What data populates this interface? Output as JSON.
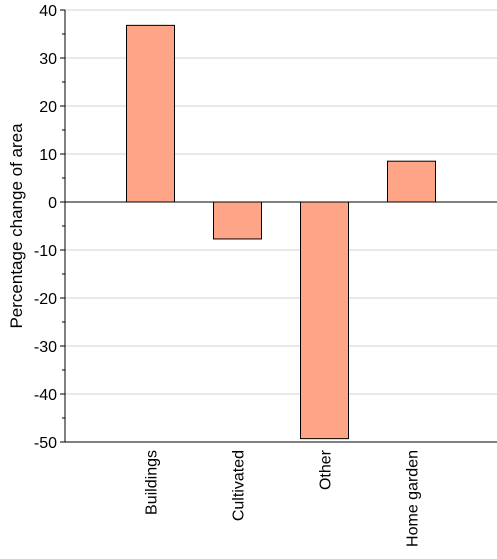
{
  "chart_data": {
    "type": "bar",
    "title": "",
    "xlabel": "",
    "ylabel": "Percentage change of area",
    "categories": [
      "Buildings",
      "Cultivated",
      "Other",
      "Home garden"
    ],
    "values": [
      36.8,
      -7.7,
      -49.3,
      8.5
    ],
    "ylim": [
      -50,
      40
    ],
    "yticks": [
      "40",
      "30",
      "20",
      "10",
      "0",
      "-10",
      "-20",
      "-30",
      "-40",
      "-50"
    ],
    "grid": "horizontal",
    "legend": "none",
    "colors": {
      "bar_fill": "#FFA587",
      "bar_stroke": "#000000",
      "grid": "#d3d3d3"
    }
  }
}
